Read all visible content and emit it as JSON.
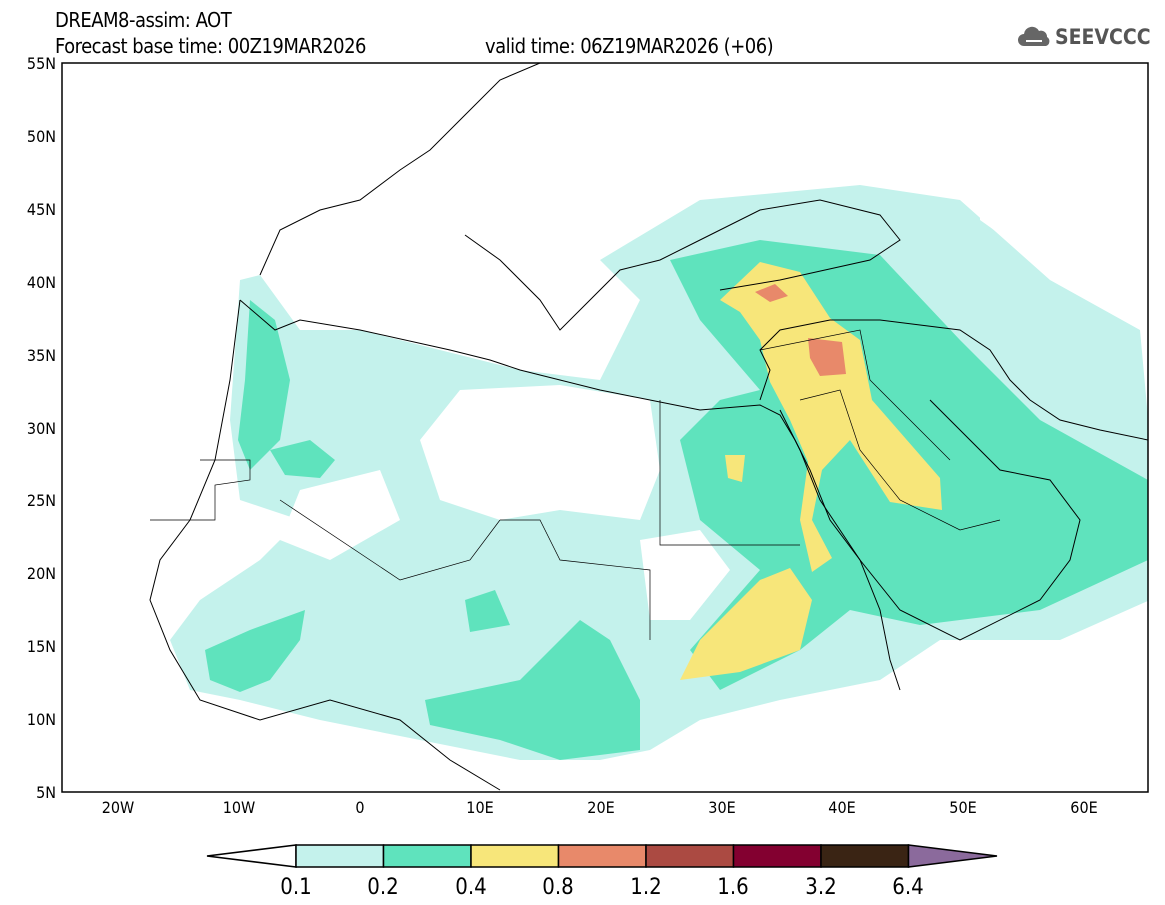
{
  "header": {
    "title": "DREAM8-assim: AOT",
    "base_time": "Forecast base time: 00Z19MAR2026",
    "valid_time": "valid time: 06Z19MAR2026 (+06)"
  },
  "logo": {
    "text": "SEEVCCC",
    "icon": "cloud-icon"
  },
  "map": {
    "lat_labels": [
      "55N",
      "50N",
      "45N",
      "40N",
      "35N",
      "30N",
      "25N",
      "20N",
      "15N",
      "10N",
      "5N"
    ],
    "lon_labels": [
      "20W",
      "10W",
      "0",
      "10E",
      "20E",
      "30E",
      "40E",
      "50E",
      "60E"
    ],
    "lon_range": [
      -25,
      65
    ],
    "lat_range": [
      5,
      55
    ]
  },
  "colorbar": {
    "labels": [
      "0.1",
      "0.2",
      "0.4",
      "0.8",
      "1.2",
      "1.6",
      "3.2",
      "6.4"
    ],
    "colors": [
      "#ffffff",
      "#c4f2ec",
      "#5fe3bd",
      "#f7e67a",
      "#e8896a",
      "#ab4a42",
      "#830030",
      "#3a2414",
      "#8b6a9c"
    ]
  }
}
